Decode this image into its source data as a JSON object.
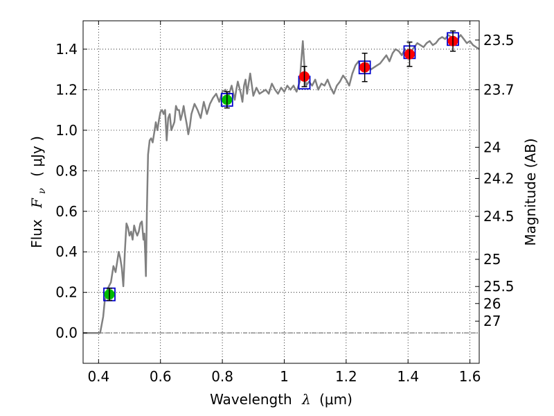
{
  "chart_data": {
    "type": "line",
    "xlabel": "Wavelength",
    "xlabel_symbol": "λ",
    "xlabel_unit": "(μm)",
    "ylabel_prefix": "Flux",
    "ylabel_symbol": "F",
    "ylabel_subscript": "ν",
    "ylabel_unit": "( μJy )",
    "y2label": "Magnitude (AB)",
    "xlim": [
      0.35,
      1.63
    ],
    "ylim": [
      -0.15,
      1.54
    ],
    "grid": true,
    "x_ticks": [
      0.4,
      0.6,
      0.8,
      1.0,
      1.2,
      1.4,
      1.6
    ],
    "x_tick_labels": [
      "0.4",
      "0.6",
      "0.8",
      "1",
      "1.2",
      "1.4",
      "1.6"
    ],
    "y_ticks": [
      0.0,
      0.2,
      0.4,
      0.6,
      0.8,
      1.0,
      1.2,
      1.4
    ],
    "y_tick_labels": [
      "0.0",
      "0.2",
      "0.4",
      "0.6",
      "0.8",
      "1.0",
      "1.2",
      "1.4"
    ],
    "y2_ticks": [
      {
        "flux": 1.445,
        "label": "23.5"
      },
      {
        "flux": 1.2,
        "label": "23.7"
      },
      {
        "flux": 0.916,
        "label": "24"
      },
      {
        "flux": 0.762,
        "label": "24.2"
      },
      {
        "flux": 0.575,
        "label": "24.5"
      },
      {
        "flux": 0.363,
        "label": "25"
      },
      {
        "flux": 0.229,
        "label": "25.5"
      },
      {
        "flux": 0.145,
        "label": "26"
      },
      {
        "flux": 0.058,
        "label": "27"
      }
    ],
    "zero_line": 0.0,
    "colors": {
      "spectrum": "#808080",
      "green_points": "#00bb00",
      "red_points": "#ff0000",
      "model_boxes": "#0000cc",
      "error_bars": "#000000"
    },
    "series": [
      {
        "kind": "spectrum",
        "x": [
          0.35,
          0.37,
          0.39,
          0.405,
          0.415,
          0.42,
          0.43,
          0.44,
          0.448,
          0.455,
          0.46,
          0.465,
          0.47,
          0.475,
          0.48,
          0.485,
          0.49,
          0.495,
          0.5,
          0.505,
          0.51,
          0.515,
          0.52,
          0.525,
          0.53,
          0.535,
          0.54,
          0.545,
          0.548,
          0.551,
          0.553,
          0.556,
          0.56,
          0.565,
          0.57,
          0.575,
          0.58,
          0.585,
          0.59,
          0.595,
          0.6,
          0.605,
          0.61,
          0.615,
          0.62,
          0.625,
          0.63,
          0.635,
          0.64,
          0.645,
          0.65,
          0.655,
          0.66,
          0.665,
          0.67,
          0.675,
          0.68,
          0.685,
          0.69,
          0.695,
          0.7,
          0.71,
          0.72,
          0.73,
          0.74,
          0.75,
          0.76,
          0.77,
          0.78,
          0.79,
          0.8,
          0.81,
          0.82,
          0.83,
          0.84,
          0.845,
          0.85,
          0.86,
          0.865,
          0.87,
          0.875,
          0.88,
          0.89,
          0.9,
          0.91,
          0.92,
          0.93,
          0.94,
          0.95,
          0.96,
          0.97,
          0.98,
          0.99,
          1.0,
          1.01,
          1.02,
          1.03,
          1.04,
          1.05,
          1.055,
          1.06,
          1.065,
          1.07,
          1.08,
          1.09,
          1.1,
          1.11,
          1.12,
          1.13,
          1.14,
          1.15,
          1.16,
          1.17,
          1.18,
          1.19,
          1.2,
          1.21,
          1.22,
          1.23,
          1.24,
          1.25,
          1.26,
          1.27,
          1.28,
          1.29,
          1.3,
          1.31,
          1.32,
          1.33,
          1.34,
          1.35,
          1.36,
          1.37,
          1.38,
          1.39,
          1.4,
          1.41,
          1.42,
          1.43,
          1.44,
          1.45,
          1.46,
          1.47,
          1.48,
          1.49,
          1.5,
          1.51,
          1.52,
          1.53,
          1.54,
          1.55,
          1.56,
          1.57,
          1.58,
          1.59,
          1.6,
          1.61,
          1.62,
          1.63
        ],
        "y": [
          0.0,
          0.0,
          0.0,
          0.0,
          0.08,
          0.16,
          0.22,
          0.25,
          0.33,
          0.3,
          0.35,
          0.4,
          0.37,
          0.32,
          0.23,
          0.4,
          0.54,
          0.52,
          0.48,
          0.5,
          0.46,
          0.53,
          0.5,
          0.48,
          0.5,
          0.54,
          0.55,
          0.46,
          0.49,
          0.38,
          0.28,
          0.6,
          0.88,
          0.95,
          0.96,
          0.94,
          0.99,
          1.04,
          1.0,
          1.05,
          1.09,
          1.1,
          1.08,
          1.1,
          0.95,
          1.06,
          1.08,
          1.0,
          1.02,
          1.04,
          1.12,
          1.1,
          1.1,
          1.05,
          1.08,
          1.12,
          1.07,
          1.03,
          0.98,
          1.02,
          1.08,
          1.13,
          1.1,
          1.06,
          1.14,
          1.08,
          1.13,
          1.16,
          1.18,
          1.14,
          1.19,
          1.2,
          1.17,
          1.22,
          1.15,
          1.2,
          1.24,
          1.18,
          1.14,
          1.22,
          1.25,
          1.18,
          1.28,
          1.17,
          1.21,
          1.18,
          1.19,
          1.2,
          1.18,
          1.23,
          1.2,
          1.18,
          1.21,
          1.19,
          1.22,
          1.2,
          1.22,
          1.19,
          1.24,
          1.34,
          1.44,
          1.32,
          1.22,
          1.24,
          1.22,
          1.25,
          1.2,
          1.23,
          1.22,
          1.25,
          1.21,
          1.18,
          1.22,
          1.24,
          1.27,
          1.25,
          1.22,
          1.28,
          1.32,
          1.34,
          1.3,
          1.29,
          1.33,
          1.3,
          1.31,
          1.32,
          1.33,
          1.35,
          1.37,
          1.34,
          1.38,
          1.4,
          1.39,
          1.37,
          1.4,
          1.38,
          1.39,
          1.41,
          1.43,
          1.42,
          1.41,
          1.43,
          1.44,
          1.42,
          1.43,
          1.45,
          1.46,
          1.45,
          1.47,
          1.46,
          1.44,
          1.45,
          1.47,
          1.45,
          1.43,
          1.44,
          1.42,
          1.41,
          1.4
        ]
      },
      {
        "kind": "photometry",
        "points": [
          {
            "x": 0.435,
            "y": 0.19,
            "err": 0.03,
            "color": "green",
            "box": true
          },
          {
            "x": 0.815,
            "y": 1.15,
            "err": 0.04,
            "color": "green",
            "box": true
          },
          {
            "x": 1.065,
            "y": 1.265,
            "err": 0.05,
            "color": "red",
            "box": true,
            "box_y": 1.235
          },
          {
            "x": 1.26,
            "y": 1.31,
            "err": 0.07,
            "color": "red",
            "box": true
          },
          {
            "x": 1.405,
            "y": 1.375,
            "err": 0.06,
            "color": "red",
            "box": true,
            "box_y": 1.385
          },
          {
            "x": 1.545,
            "y": 1.44,
            "err": 0.05,
            "color": "red",
            "box": true,
            "box_y": 1.45
          }
        ]
      }
    ]
  }
}
